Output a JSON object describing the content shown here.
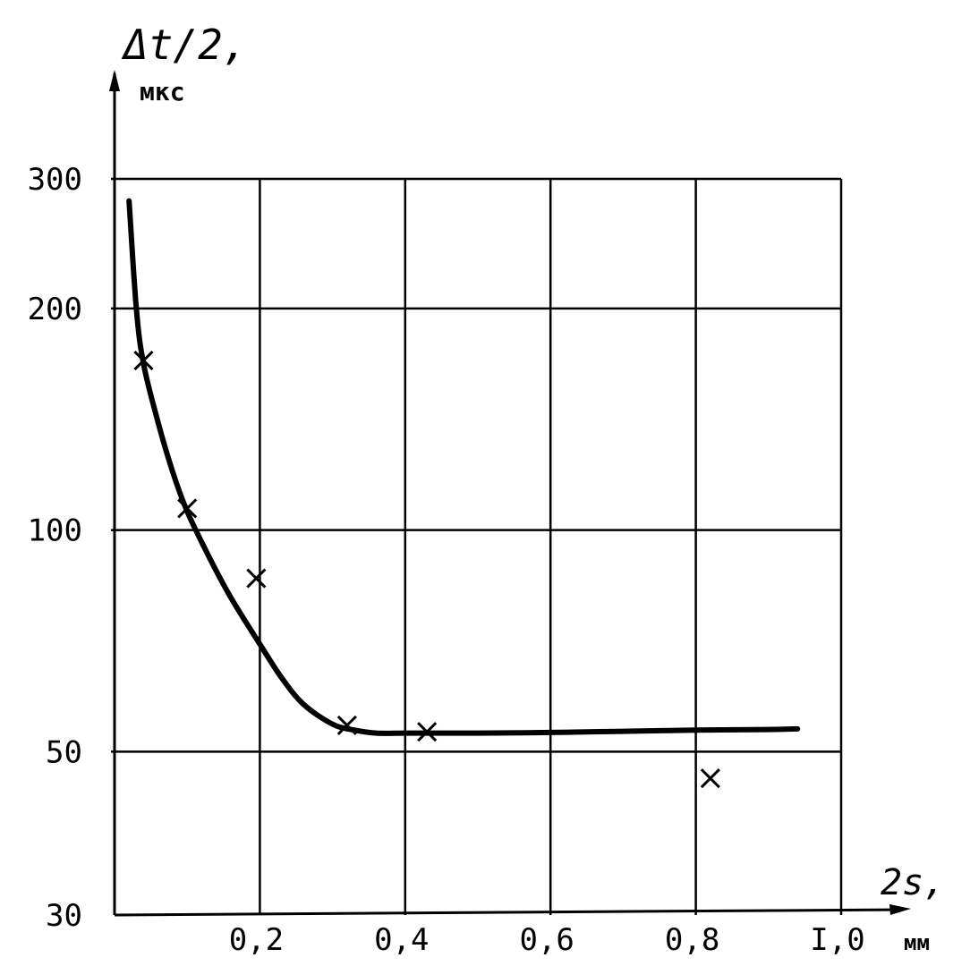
{
  "chart_data": {
    "type": "line",
    "title": "",
    "ylabel": "Δt/2,",
    "ylabel_unit": "мкс",
    "xlabel": "2s,",
    "xlabel_unit": "мм",
    "y_scale": "log",
    "xlim": [
      0.0,
      1.0
    ],
    "ylim": [
      30,
      300
    ],
    "x_ticks": [
      0.2,
      0.4,
      0.6,
      0.8,
      1.0
    ],
    "x_tick_labels": [
      "0,2",
      "0,4",
      "0,6",
      "0,8",
      "I,0"
    ],
    "y_ticks": [
      30,
      50,
      100,
      200,
      300
    ],
    "y_tick_labels": [
      "30",
      "50",
      "100",
      "200",
      "300"
    ],
    "grid": true,
    "series": [
      {
        "kind": "curve",
        "x": [
          0.02,
          0.03,
          0.04,
          0.06,
          0.08,
          0.1,
          0.13,
          0.16,
          0.2,
          0.23,
          0.26,
          0.3,
          0.33,
          0.36,
          0.4,
          0.45,
          0.5,
          0.6,
          0.7,
          0.8,
          0.9,
          0.94
        ],
        "y": [
          280,
          200,
          168,
          140,
          120,
          106,
          92,
          81,
          70,
          63,
          58,
          54.5,
          53.5,
          53,
          53,
          53,
          53,
          53.1,
          53.3,
          53.5,
          53.6,
          53.7
        ]
      },
      {
        "kind": "points",
        "marker": "x",
        "x": [
          0.04,
          0.1,
          0.195,
          0.32,
          0.43,
          0.82
        ],
        "y": [
          170,
          107,
          86,
          54.3,
          53.2,
          46
        ]
      }
    ]
  }
}
